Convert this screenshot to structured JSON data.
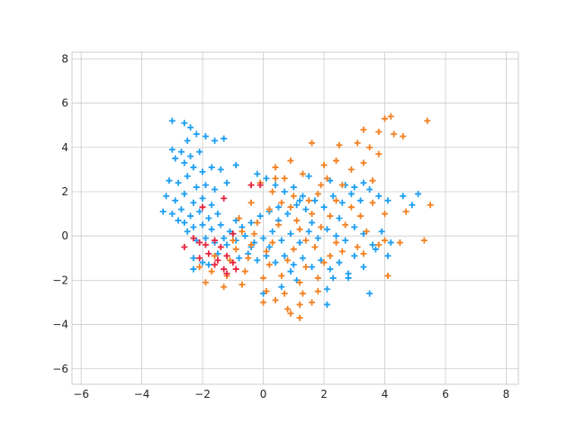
{
  "chart_data": {
    "type": "scatter",
    "title": "",
    "xlabel": "",
    "ylabel": "",
    "xlim": [
      -6.3,
      8.4
    ],
    "ylim": [
      -6.7,
      8.3
    ],
    "xticks": [
      -6,
      -4,
      -2,
      0,
      2,
      4,
      6,
      8
    ],
    "yticks": [
      -6,
      -4,
      -2,
      0,
      2,
      4,
      6,
      8
    ],
    "xtick_labels": [
      "−6",
      "−4",
      "−2",
      "0",
      "2",
      "4",
      "6",
      "8"
    ],
    "ytick_labels": [
      "−6",
      "−4",
      "−2",
      "0",
      "2",
      "4",
      "6",
      "8"
    ],
    "grid": true,
    "legend": false,
    "marker": "plus",
    "series": [
      {
        "color": "#1f9ff2",
        "points": [
          [
            -3.0,
            5.2
          ],
          [
            -2.6,
            5.1
          ],
          [
            -2.4,
            4.9
          ],
          [
            -2.2,
            4.6
          ],
          [
            -1.9,
            4.5
          ],
          [
            -1.6,
            4.3
          ],
          [
            -1.3,
            4.4
          ],
          [
            -3.0,
            3.9
          ],
          [
            -2.7,
            3.8
          ],
          [
            -2.4,
            3.6
          ],
          [
            -2.9,
            3.5
          ],
          [
            -2.6,
            3.3
          ],
          [
            -2.3,
            3.1
          ],
          [
            -2.0,
            2.9
          ],
          [
            -1.7,
            3.1
          ],
          [
            -1.4,
            3.0
          ],
          [
            -0.9,
            3.2
          ],
          [
            -3.1,
            2.5
          ],
          [
            -2.8,
            2.4
          ],
          [
            -2.5,
            2.7
          ],
          [
            -2.2,
            2.2
          ],
          [
            -1.9,
            2.3
          ],
          [
            -1.6,
            2.1
          ],
          [
            -1.2,
            2.4
          ],
          [
            -3.2,
            1.8
          ],
          [
            -2.9,
            1.6
          ],
          [
            -2.6,
            1.9
          ],
          [
            -2.3,
            1.5
          ],
          [
            -2.0,
            1.7
          ],
          [
            -1.7,
            1.4
          ],
          [
            -3.3,
            1.1
          ],
          [
            -3.0,
            1.0
          ],
          [
            -2.7,
            1.2
          ],
          [
            -2.4,
            0.9
          ],
          [
            -2.1,
            1.1
          ],
          [
            -1.8,
            0.8
          ],
          [
            -1.5,
            1.0
          ],
          [
            -2.6,
            0.6
          ],
          [
            -2.3,
            0.4
          ],
          [
            -2.0,
            0.5
          ],
          [
            -1.7,
            0.3
          ],
          [
            -1.4,
            0.5
          ],
          [
            -1.1,
            0.2
          ],
          [
            -2.2,
            -0.2
          ],
          [
            -1.9,
            -0.1
          ],
          [
            -1.6,
            -0.3
          ],
          [
            -1.3,
            -0.1
          ],
          [
            -2.3,
            -1.0
          ],
          [
            -2.3,
            -1.5
          ],
          [
            -2.0,
            -1.2
          ],
          [
            -1.0,
            0.1
          ],
          [
            -0.7,
            0.4
          ],
          [
            -0.4,
            0.6
          ],
          [
            -0.1,
            0.9
          ],
          [
            0.2,
            1.1
          ],
          [
            0.5,
            1.3
          ],
          [
            0.8,
            1.0
          ],
          [
            1.1,
            1.4
          ],
          [
            1.4,
            1.2
          ],
          [
            1.7,
            1.6
          ],
          [
            2.0,
            1.3
          ],
          [
            2.3,
            1.8
          ],
          [
            2.6,
            1.5
          ],
          [
            2.9,
            1.9
          ],
          [
            3.2,
            1.6
          ],
          [
            3.5,
            2.1
          ],
          [
            3.8,
            1.8
          ],
          [
            4.1,
            1.6
          ],
          [
            4.6,
            1.8
          ],
          [
            5.1,
            1.9
          ],
          [
            4.9,
            1.4
          ],
          [
            1.5,
            2.7
          ],
          [
            2.2,
            2.5
          ],
          [
            2.7,
            2.3
          ],
          [
            3.0,
            2.2
          ],
          [
            3.3,
            2.4
          ],
          [
            -1.2,
            -0.4
          ],
          [
            -0.9,
            -0.2
          ],
          [
            -0.6,
            0.0
          ],
          [
            -0.3,
            -0.3
          ],
          [
            0.0,
            -0.1
          ],
          [
            0.3,
            0.2
          ],
          [
            0.6,
            -0.2
          ],
          [
            0.9,
            0.1
          ],
          [
            1.2,
            -0.3
          ],
          [
            1.5,
            0.2
          ],
          [
            1.8,
            -0.1
          ],
          [
            2.1,
            0.3
          ],
          [
            2.4,
            0.0
          ],
          [
            2.7,
            -0.2
          ],
          [
            3.0,
            0.4
          ],
          [
            3.3,
            0.1
          ],
          [
            3.6,
            -0.4
          ],
          [
            3.9,
            0.2
          ],
          [
            4.2,
            -0.3
          ],
          [
            4.1,
            -0.9
          ],
          [
            3.7,
            -0.6
          ],
          [
            -0.8,
            -1.0
          ],
          [
            -0.5,
            -0.8
          ],
          [
            -0.2,
            -1.1
          ],
          [
            0.1,
            -0.9
          ],
          [
            0.4,
            -1.2
          ],
          [
            0.7,
            -0.9
          ],
          [
            1.0,
            -1.3
          ],
          [
            1.3,
            -1.0
          ],
          [
            1.6,
            -1.4
          ],
          [
            1.9,
            -1.1
          ],
          [
            2.2,
            -1.5
          ],
          [
            2.5,
            -1.2
          ],
          [
            2.8,
            -1.7
          ],
          [
            2.3,
            -1.9
          ],
          [
            2.8,
            -1.9
          ],
          [
            3.3,
            -1.4
          ],
          [
            0.0,
            -2.6
          ],
          [
            0.6,
            -2.3
          ],
          [
            1.1,
            -2.0
          ],
          [
            2.1,
            -2.4
          ],
          [
            3.5,
            -2.6
          ],
          [
            2.1,
            -3.1
          ],
          [
            0.9,
            -1.6
          ],
          [
            -0.2,
            2.8
          ],
          [
            0.1,
            2.6
          ],
          [
            0.4,
            2.3
          ],
          [
            0.7,
            2.0
          ],
          [
            1.0,
            2.2
          ],
          [
            1.3,
            1.8
          ],
          [
            -2.5,
            0.2
          ],
          [
            -2.8,
            0.7
          ],
          [
            -1.5,
            -0.8
          ],
          [
            -1.8,
            -1.3
          ],
          [
            1.6,
            0.6
          ],
          [
            0.5,
            0.7
          ],
          [
            -0.4,
            -0.5
          ],
          [
            2.5,
            0.8
          ],
          [
            1.2,
            1.6
          ],
          [
            0.2,
            -0.5
          ],
          [
            -0.9,
            0.7
          ],
          [
            3.0,
            -0.9
          ],
          [
            -2.1,
            3.8
          ],
          [
            -2.5,
            4.3
          ]
        ]
      },
      {
        "color": "#f28022",
        "points": [
          [
            4.0,
            5.3
          ],
          [
            4.2,
            5.4
          ],
          [
            5.4,
            5.2
          ],
          [
            3.3,
            4.8
          ],
          [
            3.8,
            4.7
          ],
          [
            4.3,
            4.6
          ],
          [
            4.6,
            4.5
          ],
          [
            3.1,
            4.2
          ],
          [
            3.5,
            4.0
          ],
          [
            3.8,
            3.7
          ],
          [
            2.5,
            4.1
          ],
          [
            1.6,
            4.2
          ],
          [
            3.3,
            3.3
          ],
          [
            2.9,
            3.0
          ],
          [
            2.4,
            3.4
          ],
          [
            2.0,
            3.2
          ],
          [
            0.9,
            3.4
          ],
          [
            0.4,
            3.1
          ],
          [
            1.3,
            2.8
          ],
          [
            2.1,
            2.6
          ],
          [
            2.6,
            2.3
          ],
          [
            0.7,
            2.6
          ],
          [
            -0.1,
            2.4
          ],
          [
            0.3,
            2.0
          ],
          [
            1.0,
            1.8
          ],
          [
            1.8,
            1.9
          ],
          [
            2.4,
            1.6
          ],
          [
            -0.4,
            1.5
          ],
          [
            0.2,
            1.2
          ],
          [
            0.9,
            1.3
          ],
          [
            1.6,
            1.0
          ],
          [
            2.2,
            0.9
          ],
          [
            -0.8,
            0.8
          ],
          [
            -0.2,
            0.6
          ],
          [
            0.5,
            0.5
          ],
          [
            1.2,
            0.3
          ],
          [
            1.9,
            0.4
          ],
          [
            2.7,
            0.5
          ],
          [
            3.4,
            0.2
          ],
          [
            -1.0,
            -0.2
          ],
          [
            -0.4,
            -0.4
          ],
          [
            0.3,
            -0.3
          ],
          [
            1.0,
            -0.6
          ],
          [
            1.7,
            -0.5
          ],
          [
            2.4,
            -0.3
          ],
          [
            3.1,
            -0.5
          ],
          [
            3.8,
            -0.4
          ],
          [
            4.5,
            -0.3
          ],
          [
            5.3,
            -0.2
          ],
          [
            -1.6,
            -0.9
          ],
          [
            -1.1,
            -1.1
          ],
          [
            -0.5,
            -1.0
          ],
          [
            0.2,
            -1.3
          ],
          [
            0.8,
            -1.1
          ],
          [
            1.4,
            -1.4
          ],
          [
            2.0,
            -1.2
          ],
          [
            -2.1,
            -1.4
          ],
          [
            -1.7,
            -1.6
          ],
          [
            -1.2,
            -1.8
          ],
          [
            -0.6,
            -1.6
          ],
          [
            0.0,
            -1.9
          ],
          [
            0.6,
            -1.8
          ],
          [
            1.2,
            -2.1
          ],
          [
            1.8,
            -1.9
          ],
          [
            -1.9,
            -2.1
          ],
          [
            -1.3,
            -2.3
          ],
          [
            -0.7,
            -2.2
          ],
          [
            0.1,
            -2.5
          ],
          [
            0.7,
            -2.6
          ],
          [
            1.3,
            -2.6
          ],
          [
            1.8,
            -2.5
          ],
          [
            0.0,
            -3.0
          ],
          [
            0.4,
            -2.9
          ],
          [
            0.8,
            -3.3
          ],
          [
            1.2,
            -3.1
          ],
          [
            1.6,
            -3.0
          ],
          [
            1.2,
            -3.7
          ],
          [
            0.9,
            -3.5
          ],
          [
            4.1,
            -1.8
          ],
          [
            5.5,
            1.4
          ],
          [
            4.7,
            1.1
          ],
          [
            4.0,
            1.0
          ],
          [
            3.6,
            1.5
          ],
          [
            3.2,
            0.9
          ],
          [
            2.9,
            1.3
          ],
          [
            4.0,
            -0.2
          ],
          [
            3.3,
            -0.8
          ],
          [
            -0.3,
            0.1
          ],
          [
            1.5,
            1.6
          ],
          [
            2.6,
            -0.7
          ],
          [
            0.6,
            1.5
          ],
          [
            1.9,
            2.3
          ],
          [
            -0.7,
            0.2
          ],
          [
            0.1,
            -0.7
          ],
          [
            2.2,
            -0.9
          ],
          [
            1.1,
            0.7
          ],
          [
            0.4,
            2.6
          ],
          [
            3.6,
            2.5
          ],
          [
            1.4,
            -0.2
          ],
          [
            -0.9,
            -0.6
          ]
        ]
      },
      {
        "color": "#e8253f",
        "points": [
          [
            -0.4,
            2.3
          ],
          [
            -0.1,
            2.3
          ],
          [
            -1.3,
            1.7
          ],
          [
            -2.0,
            1.3
          ],
          [
            -2.6,
            -0.5
          ],
          [
            -2.3,
            -0.1
          ],
          [
            -2.1,
            -0.3
          ],
          [
            -1.9,
            -0.4
          ],
          [
            -1.6,
            -0.2
          ],
          [
            -1.4,
            -0.5
          ],
          [
            -1.8,
            -0.8
          ],
          [
            -1.5,
            -1.1
          ],
          [
            -1.2,
            -0.9
          ],
          [
            -1.0,
            -1.2
          ],
          [
            -1.3,
            -1.5
          ],
          [
            -1.6,
            -1.3
          ],
          [
            -2.1,
            -1.0
          ],
          [
            -1.2,
            -1.7
          ],
          [
            -0.9,
            -1.5
          ],
          [
            -1.0,
            0.1
          ]
        ]
      }
    ]
  }
}
